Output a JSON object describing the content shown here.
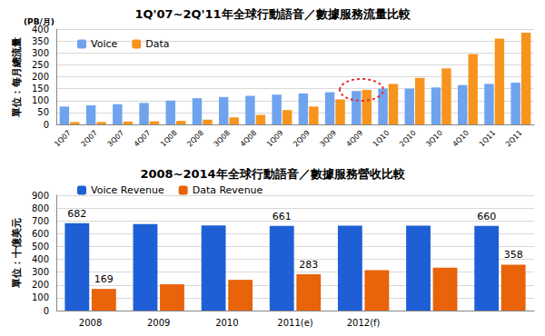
{
  "chart_data": [
    {
      "type": "bar",
      "title": "1Q'07~2Q'11年全球行動語音／數據服務流量比較",
      "ylabel": "單位：每月總流量",
      "annotations": [
        "(PB/月)"
      ],
      "categories": [
        "1Q07",
        "2Q07",
        "3Q07",
        "4Q07",
        "1Q08",
        "2Q08",
        "3Q08",
        "4Q08",
        "1Q09",
        "2Q09",
        "3Q09",
        "4Q09",
        "1Q10",
        "2Q10",
        "3Q10",
        "4Q10",
        "1Q11",
        "2Q11"
      ],
      "series": [
        {
          "name": "Voice",
          "color": "#6fa3ee",
          "values": [
            75,
            80,
            85,
            90,
            100,
            110,
            115,
            120,
            125,
            130,
            135,
            140,
            150,
            150,
            155,
            165,
            170,
            175
          ]
        },
        {
          "name": "Data",
          "color": "#f7941d",
          "values": [
            10,
            10,
            12,
            13,
            15,
            20,
            30,
            40,
            60,
            75,
            105,
            145,
            170,
            195,
            235,
            295,
            360,
            385
          ]
        }
      ],
      "ylim": [
        0,
        400
      ],
      "yticks": [
        0,
        50,
        100,
        150,
        200,
        250,
        300,
        350,
        400
      ],
      "grid": true,
      "legend": "upper left"
    },
    {
      "type": "bar",
      "title": "2008~2014年全球行動語音／數據服務營收比較",
      "ylabel": "單位：十億美元",
      "categories": [
        "2008",
        "2009",
        "2010",
        "2011(e)",
        "2012(f)",
        null,
        null
      ],
      "series": [
        {
          "name": "Voice Revenue",
          "color": "#1f5fd6",
          "values": [
            682,
            675,
            665,
            661,
            663,
            662,
            660
          ],
          "value_labels": [
            "682",
            null,
            null,
            "661",
            null,
            null,
            "660"
          ]
        },
        {
          "name": "Data Revenue",
          "color": "#e8630a",
          "values": [
            169,
            205,
            240,
            283,
            315,
            335,
            358
          ],
          "value_labels": [
            "169",
            null,
            null,
            "283",
            null,
            null,
            "358"
          ]
        }
      ],
      "ylim": [
        0,
        900
      ],
      "yticks": [
        0,
        100,
        200,
        300,
        400,
        500,
        600,
        700,
        800,
        900
      ],
      "grid": true,
      "data_labels": true,
      "legend": "upper left"
    }
  ]
}
